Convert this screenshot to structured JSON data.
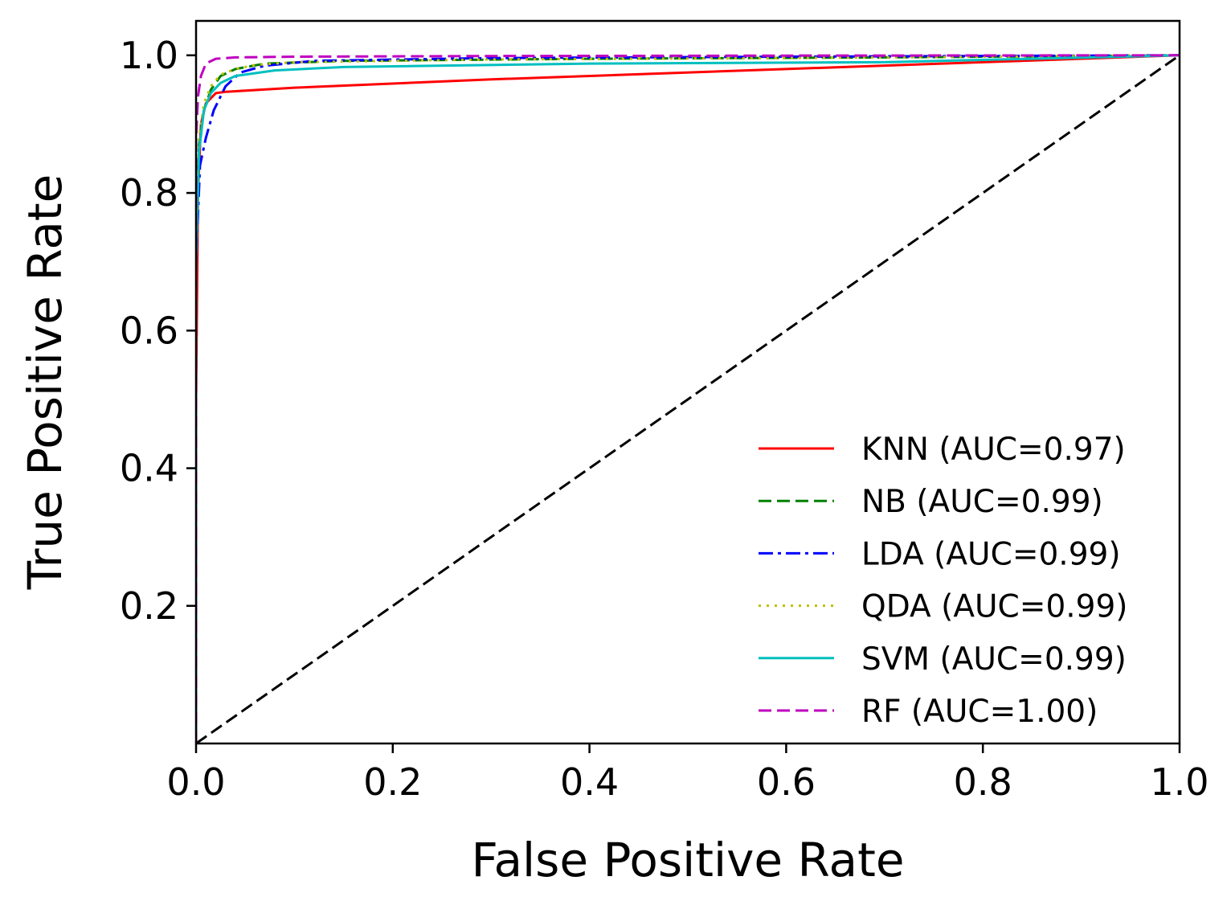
{
  "chart_data": {
    "type": "line",
    "title": "",
    "xlabel": "False Positive Rate",
    "ylabel": "True Positive Rate",
    "xlim": [
      0.0,
      1.0
    ],
    "ylim": [
      0.0,
      1.05
    ],
    "xticks": [
      0.0,
      0.2,
      0.4,
      0.6,
      0.8,
      1.0
    ],
    "xtick_labels": [
      "0.0",
      "0.2",
      "0.4",
      "0.6",
      "0.8",
      "1.0"
    ],
    "yticks": [
      0.2,
      0.4,
      0.6,
      0.8,
      1.0
    ],
    "ytick_labels": [
      "0.2",
      "0.4",
      "0.6",
      "0.8",
      "1.0"
    ],
    "grid": false,
    "legend_position": "lower-right",
    "series": [
      {
        "name": "KNN",
        "label": "KNN (AUC=0.97)",
        "color": "#ff0000",
        "style": "solid",
        "x": [
          0.0,
          0.0,
          0.002,
          0.005,
          0.01,
          0.02,
          0.03,
          0.1,
          0.3,
          0.6,
          0.8,
          1.0
        ],
        "y": [
          0.0,
          0.5,
          0.8,
          0.9,
          0.93,
          0.945,
          0.947,
          0.953,
          0.965,
          0.98,
          0.99,
          1.0
        ]
      },
      {
        "name": "NB",
        "label": "NB (AUC=0.99)",
        "color": "#008000",
        "style": "dashed",
        "x": [
          0.0,
          0.0,
          0.003,
          0.008,
          0.015,
          0.025,
          0.04,
          0.07,
          0.15,
          0.4,
          0.7,
          1.0
        ],
        "y": [
          0.0,
          0.7,
          0.87,
          0.92,
          0.95,
          0.97,
          0.98,
          0.988,
          0.992,
          0.995,
          0.997,
          1.0
        ]
      },
      {
        "name": "LDA",
        "label": "LDA (AUC=0.99)",
        "color": "#0000ff",
        "style": "dashdot",
        "x": [
          0.0,
          0.0,
          0.004,
          0.01,
          0.018,
          0.03,
          0.045,
          0.07,
          0.12,
          0.3,
          0.6,
          1.0
        ],
        "y": [
          0.0,
          0.7,
          0.84,
          0.88,
          0.92,
          0.955,
          0.975,
          0.985,
          0.992,
          0.996,
          0.998,
          1.0
        ]
      },
      {
        "name": "QDA",
        "label": "QDA (AUC=0.99)",
        "color": "#bfbf00",
        "style": "dotted",
        "x": [
          0.0,
          0.0,
          0.003,
          0.008,
          0.015,
          0.025,
          0.04,
          0.06,
          0.1,
          0.3,
          0.6,
          1.0
        ],
        "y": [
          0.0,
          0.7,
          0.88,
          0.93,
          0.955,
          0.972,
          0.98,
          0.986,
          0.99,
          0.994,
          0.996,
          1.0
        ]
      },
      {
        "name": "SVM",
        "label": "SVM (AUC=0.99)",
        "color": "#00bfbf",
        "style": "solid",
        "x": [
          0.0,
          0.0,
          0.003,
          0.008,
          0.015,
          0.025,
          0.04,
          0.08,
          0.15,
          0.4,
          0.7,
          1.0
        ],
        "y": [
          0.0,
          0.7,
          0.86,
          0.92,
          0.945,
          0.96,
          0.97,
          0.978,
          0.983,
          0.988,
          0.99,
          1.0
        ]
      },
      {
        "name": "RF",
        "label": "RF (AUC=1.00)",
        "color": "#bf00bf",
        "style": "dashed",
        "x": [
          0.0,
          0.0,
          0.002,
          0.005,
          0.01,
          0.02,
          0.04,
          0.1,
          0.3,
          0.6,
          1.0
        ],
        "y": [
          0.0,
          0.88,
          0.94,
          0.97,
          0.988,
          0.995,
          0.997,
          0.998,
          0.999,
          0.9995,
          1.0
        ]
      }
    ],
    "reference_line": {
      "name": "chance",
      "color": "#000000",
      "style": "dashed",
      "x": [
        0.0,
        1.0
      ],
      "y": [
        0.0,
        1.0
      ]
    }
  }
}
